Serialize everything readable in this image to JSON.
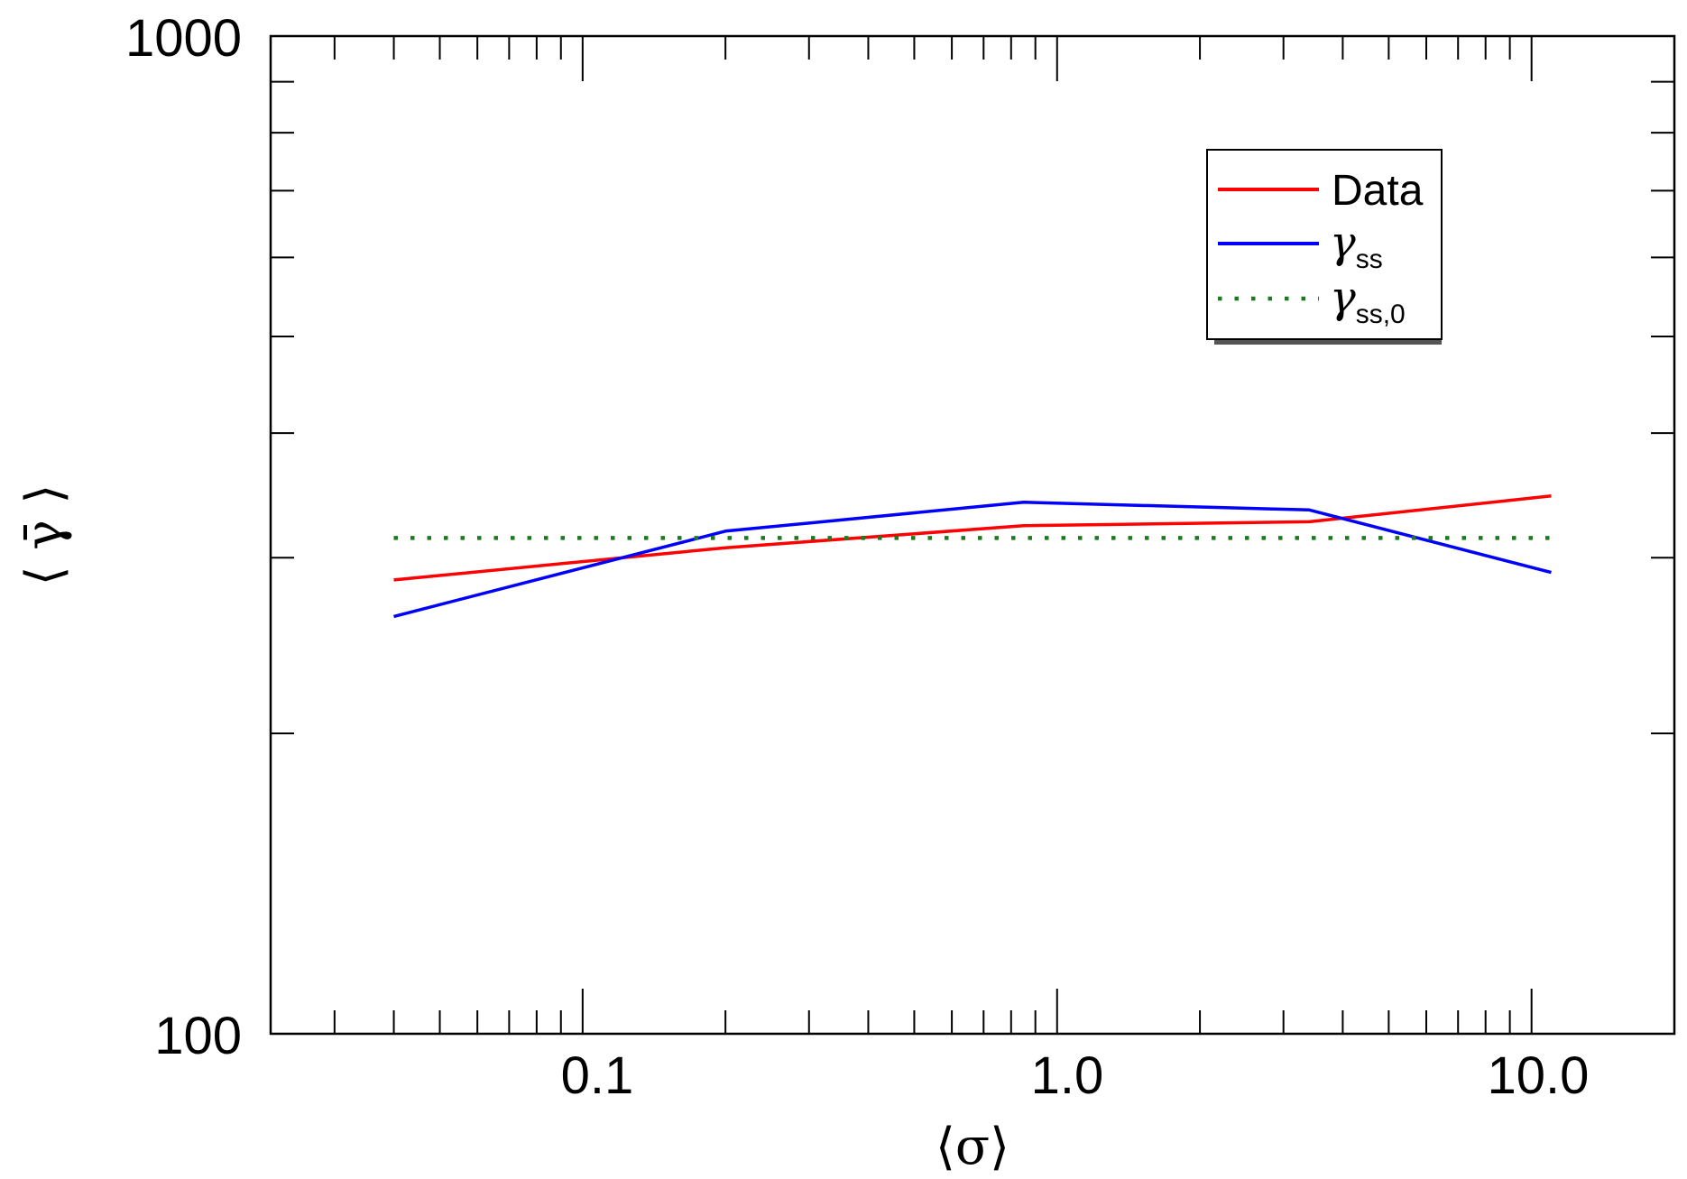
{
  "chart_data": {
    "type": "line",
    "xscale": "log",
    "yscale": "log",
    "xlim": [
      0.022,
      20
    ],
    "ylim": [
      100,
      1000
    ],
    "xlabel": "⟨σ⟩",
    "ylabel": "⟨ γ̄ ⟩",
    "x_ticks": [
      {
        "value": 0.1,
        "label": "0.1"
      },
      {
        "value": 1.0,
        "label": "1.0"
      },
      {
        "value": 10.0,
        "label": "10.0"
      }
    ],
    "y_ticks": [
      {
        "value": 100,
        "label": "100"
      },
      {
        "value": 1000,
        "label": "1000"
      }
    ],
    "series": [
      {
        "name": "Data",
        "color": "#ff0000",
        "style": "solid",
        "x": [
          0.04,
          0.2,
          0.85,
          3.4,
          11.0
        ],
        "y": [
          285,
          307,
          323,
          326,
          346
        ]
      },
      {
        "name": "γ_ss",
        "color": "#0000ff",
        "style": "solid",
        "x": [
          0.04,
          0.2,
          0.85,
          3.4,
          11.0
        ],
        "y": [
          262,
          319,
          341,
          335,
          290
        ]
      },
      {
        "name": "γ_ss,0",
        "color": "#1f7a1f",
        "style": "dotted",
        "x": [
          0.04,
          11.0
        ],
        "y": [
          314,
          314
        ]
      }
    ],
    "legend": {
      "position": "top-right",
      "entries": [
        {
          "symbol": "",
          "label": "Data",
          "sub": ""
        },
        {
          "symbol": "γ",
          "label": "",
          "sub": "ss"
        },
        {
          "symbol": "γ",
          "label": "",
          "sub": "ss,0"
        }
      ]
    }
  }
}
